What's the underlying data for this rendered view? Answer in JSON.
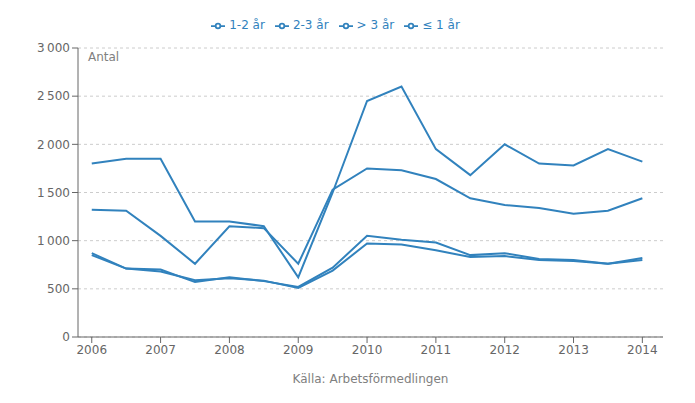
{
  "chart_data": {
    "type": "line",
    "xlabel": "Källa: Arbetsförmedlingen",
    "annotations": [
      "Antal"
    ],
    "xlim": [
      2005.8,
      2014.3
    ],
    "xticks": [
      2006,
      2007,
      2008,
      2009,
      2010,
      2011,
      2012,
      2013,
      2014
    ],
    "ylim": [
      0,
      3000
    ],
    "yticks": [
      0,
      500,
      {
        "value": 1000,
        "label": "1 000"
      },
      {
        "value": 1500,
        "label": "1 500"
      },
      {
        "value": 2000,
        "label": "2 000"
      },
      {
        "value": 2500,
        "label": "2 500"
      },
      {
        "value": 3000,
        "label": "3 000"
      }
    ],
    "grid": true,
    "legend": "top",
    "x": [
      2006.0,
      2006.5,
      2007.0,
      2007.5,
      2008.0,
      2008.5,
      2009.0,
      2009.5,
      2010.0,
      2010.5,
      2011.0,
      2011.5,
      2012.0,
      2012.5,
      2013.0,
      2013.5,
      2014.0
    ],
    "series": [
      {
        "name": "≤ 1 år",
        "values": [
          1800,
          1850,
          1850,
          1200,
          1200,
          1150,
          620,
          1500,
          2450,
          2600,
          1950,
          1680,
          2000,
          1800,
          1780,
          1950,
          1820
        ]
      },
      {
        "name": "1-2 år",
        "values": [
          1320,
          1310,
          1050,
          760,
          1150,
          1130,
          760,
          1530,
          1750,
          1730,
          1640,
          1440,
          1370,
          1340,
          1280,
          1310,
          1440
        ]
      },
      {
        "name": "2-3 år",
        "values": [
          870,
          710,
          700,
          570,
          620,
          580,
          520,
          720,
          1050,
          1010,
          980,
          850,
          870,
          810,
          800,
          760,
          800
        ]
      },
      {
        "name": "> 3 år",
        "values": [
          850,
          710,
          680,
          590,
          610,
          585,
          510,
          690,
          970,
          960,
          900,
          830,
          840,
          800,
          790,
          760,
          820
        ]
      }
    ]
  }
}
